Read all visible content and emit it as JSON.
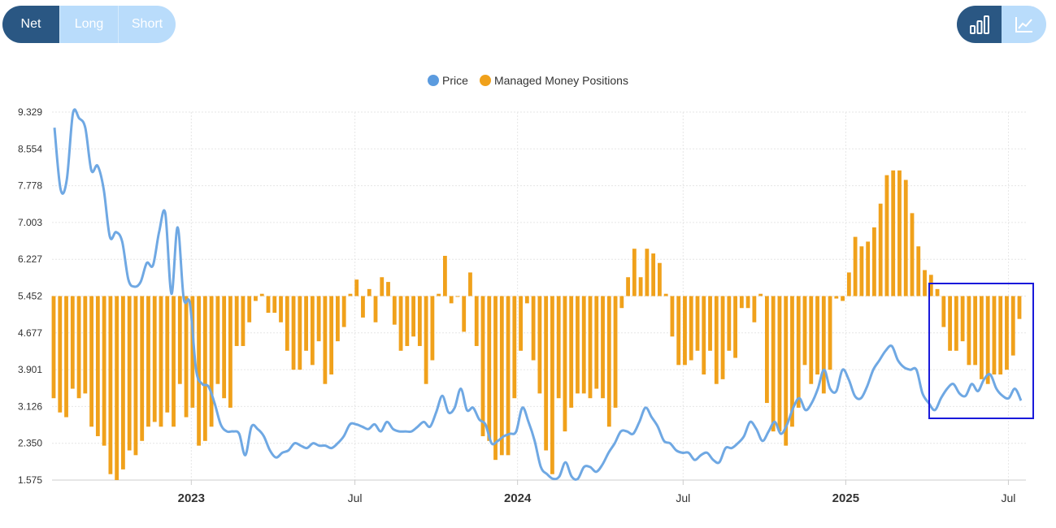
{
  "tabs": [
    {
      "label": "Net",
      "active": true
    },
    {
      "label": "Long",
      "active": false
    },
    {
      "label": "Short",
      "active": false
    }
  ],
  "view_toggle": [
    {
      "icon": "bar-chart-icon",
      "active": true
    },
    {
      "icon": "line-chart-icon",
      "active": false
    }
  ],
  "colors": {
    "accent_dark": "#2a5783",
    "accent_light": "#b9dcfb",
    "price_line": "#6fa8e3",
    "bars": "#f0a11b",
    "selection_box": "#1a1adb"
  },
  "chart_data": {
    "type": "bar+line",
    "legend": [
      {
        "name": "Price",
        "color": "#5b9bdf"
      },
      {
        "name": "Managed Money Positions",
        "color": "#f0a11b"
      }
    ],
    "legend_position": "top-center",
    "y_ticks": [
      "9.329",
      "8.554",
      "7.778",
      "7.003",
      "6.227",
      "5.452",
      "4.677",
      "3.901",
      "3.126",
      "2.350",
      "1.575"
    ],
    "ylim": [
      1.575,
      9.329
    ],
    "baseline": 5.452,
    "x_ticks": [
      {
        "label": "2023",
        "bold": true,
        "at": 0.143
      },
      {
        "label": "Jul",
        "bold": false,
        "at": 0.311
      },
      {
        "label": "2024",
        "bold": true,
        "at": 0.478
      },
      {
        "label": "Jul",
        "bold": false,
        "at": 0.648
      },
      {
        "label": "2025",
        "bold": true,
        "at": 0.815
      },
      {
        "label": "Jul",
        "bold": false,
        "at": 0.982
      }
    ],
    "bar_values": [
      3.3,
      3.0,
      2.9,
      3.5,
      3.3,
      3.4,
      2.7,
      2.5,
      2.3,
      1.7,
      1.575,
      1.8,
      2.2,
      2.1,
      2.4,
      2.7,
      2.8,
      2.7,
      3.0,
      2.7,
      3.6,
      2.9,
      3.1,
      2.3,
      2.4,
      2.7,
      3.6,
      3.3,
      3.1,
      4.4,
      4.4,
      4.9,
      5.35,
      5.5,
      5.1,
      5.1,
      4.9,
      4.3,
      3.9,
      3.9,
      4.3,
      4.0,
      4.5,
      3.6,
      3.8,
      4.5,
      4.8,
      5.5,
      5.8,
      5.0,
      5.6,
      4.9,
      5.85,
      5.75,
      4.85,
      4.3,
      4.4,
      4.6,
      4.4,
      3.6,
      4.1,
      5.5,
      6.3,
      5.3,
      5.45,
      4.7,
      5.95,
      4.4,
      2.5,
      2.4,
      2.0,
      2.1,
      2.1,
      3.3,
      4.3,
      5.3,
      4.1,
      3.4,
      2.2,
      1.7,
      3.3,
      2.6,
      3.1,
      3.4,
      3.4,
      3.3,
      3.5,
      3.3,
      2.7,
      3.1,
      5.2,
      5.85,
      6.45,
      5.85,
      6.45,
      6.35,
      6.15,
      5.5,
      4.6,
      4.0,
      4.0,
      4.1,
      4.3,
      3.8,
      4.3,
      3.6,
      3.7,
      4.3,
      4.15,
      5.2,
      5.2,
      4.9,
      5.5,
      3.2,
      2.6,
      2.6,
      2.3,
      2.7,
      3.1,
      4.0,
      3.6,
      3.8,
      3.4,
      3.9,
      5.4,
      5.35,
      5.95,
      6.7,
      6.5,
      6.6,
      6.9,
      7.4,
      8.0,
      8.1,
      8.1,
      7.9,
      7.2,
      6.5,
      6.0,
      5.9,
      5.6,
      4.8,
      4.3,
      4.3,
      4.5,
      4.0,
      4.0,
      3.7,
      3.6,
      3.8,
      3.8,
      3.9,
      4.2,
      4.97
    ],
    "price_values": [
      9.0,
      7.7,
      7.9,
      9.3,
      9.2,
      9.0,
      8.1,
      8.2,
      7.7,
      6.7,
      6.8,
      6.6,
      5.8,
      5.65,
      5.75,
      6.15,
      6.1,
      6.8,
      7.2,
      5.5,
      6.9,
      5.4,
      5.3,
      3.9,
      3.6,
      3.55,
      3.2,
      2.75,
      2.6,
      2.6,
      2.55,
      2.1,
      2.7,
      2.65,
      2.5,
      2.2,
      2.05,
      2.15,
      2.2,
      2.35,
      2.3,
      2.25,
      2.35,
      2.3,
      2.3,
      2.25,
      2.35,
      2.5,
      2.75,
      2.75,
      2.7,
      2.65,
      2.75,
      2.6,
      2.8,
      2.65,
      2.6,
      2.6,
      2.6,
      2.7,
      2.8,
      2.7,
      3.0,
      3.35,
      3.0,
      3.1,
      3.5,
      3.05,
      3.1,
      2.85,
      2.75,
      2.35,
      2.4,
      2.5,
      2.55,
      2.6,
      3.1,
      2.8,
      2.4,
      1.85,
      1.7,
      1.6,
      1.65,
      1.95,
      1.65,
      1.6,
      1.85,
      1.85,
      1.75,
      1.9,
      2.15,
      2.35,
      2.6,
      2.6,
      2.55,
      2.8,
      3.1,
      2.9,
      2.7,
      2.4,
      2.35,
      2.2,
      2.15,
      2.15,
      2.0,
      2.1,
      2.15,
      2.0,
      1.95,
      2.25,
      2.25,
      2.35,
      2.5,
      2.8,
      2.65,
      2.4,
      2.6,
      2.8,
      2.55,
      2.75,
      3.1,
      3.3,
      3.05,
      3.2,
      3.5,
      3.9,
      3.5,
      3.45,
      3.9,
      3.7,
      3.35,
      3.3,
      3.55,
      3.9,
      4.1,
      4.3,
      4.4,
      4.1,
      3.95,
      3.9,
      3.9,
      3.4,
      3.2,
      3.05,
      3.3,
      3.5,
      3.6,
      3.4,
      3.35,
      3.6,
      3.45,
      3.7,
      3.8,
      3.5,
      3.35,
      3.3,
      3.5,
      3.25
    ]
  }
}
